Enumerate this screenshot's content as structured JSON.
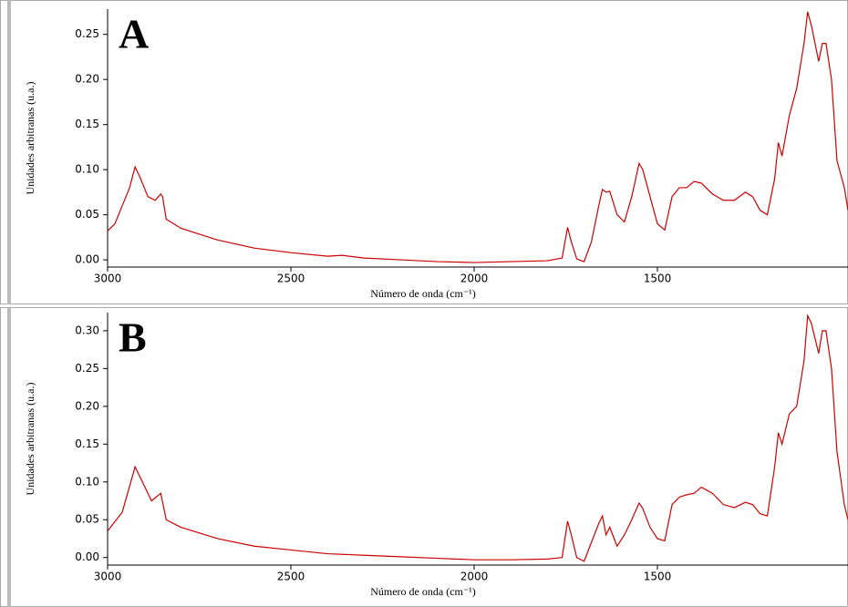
{
  "chart_data": [
    {
      "type": "line",
      "panel_label": "A",
      "ylabel": "Unidades arbitranas (u.a.)",
      "xlabel": "Número de onda (cm⁻¹)",
      "color": "#cc0000",
      "xlim": [
        3000,
        980
      ],
      "xticks": [
        3000,
        2500,
        2000,
        1500
      ],
      "ylim": [
        -0.008,
        0.278
      ],
      "yticks": [
        {
          "value": 0,
          "label": "0.00"
        },
        0.05,
        {
          "value": 0.1,
          "label": "0.10"
        },
        0.15,
        {
          "value": 0.2,
          "label": "0.20"
        },
        0.25
      ],
      "grid": false,
      "x": [
        3000,
        2980,
        2960,
        2940,
        2925,
        2910,
        2890,
        2870,
        2855,
        2850,
        2840,
        2800,
        2700,
        2600,
        2500,
        2400,
        2360,
        2300,
        2200,
        2100,
        2000,
        1900,
        1800,
        1760,
        1745,
        1735,
        1720,
        1700,
        1680,
        1660,
        1650,
        1640,
        1630,
        1610,
        1590,
        1570,
        1550,
        1540,
        1520,
        1500,
        1480,
        1460,
        1440,
        1420,
        1400,
        1380,
        1350,
        1320,
        1290,
        1260,
        1240,
        1220,
        1200,
        1180,
        1170,
        1160,
        1140,
        1120,
        1100,
        1090,
        1080,
        1060,
        1050,
        1040,
        1025,
        1010,
        990,
        980
      ],
      "values": [
        0.032,
        0.04,
        0.06,
        0.08,
        0.103,
        0.09,
        0.07,
        0.066,
        0.073,
        0.07,
        0.045,
        0.035,
        0.022,
        0.013,
        0.008,
        0.004,
        0.005,
        0.002,
        0.0,
        -0.002,
        -0.003,
        -0.002,
        -0.001,
        0.002,
        0.036,
        0.02,
        0.001,
        -0.002,
        0.02,
        0.06,
        0.078,
        0.075,
        0.076,
        0.05,
        0.042,
        0.07,
        0.107,
        0.1,
        0.07,
        0.04,
        0.033,
        0.07,
        0.08,
        0.08,
        0.087,
        0.085,
        0.073,
        0.066,
        0.066,
        0.075,
        0.07,
        0.055,
        0.05,
        0.09,
        0.13,
        0.115,
        0.16,
        0.19,
        0.24,
        0.275,
        0.26,
        0.22,
        0.24,
        0.24,
        0.2,
        0.11,
        0.08,
        0.055
      ]
    },
    {
      "type": "line",
      "panel_label": "B",
      "ylabel": "Unidades arbitranas (u.a.)",
      "xlabel": "Número de onda (cm⁻¹)",
      "color": "#cc0000",
      "xlim": [
        3000,
        980
      ],
      "xticks": [
        3000,
        2500,
        2000,
        1500
      ],
      "ylim": [
        -0.01,
        0.324
      ],
      "yticks": [
        {
          "value": 0,
          "label": "0.00"
        },
        0.05,
        {
          "value": 0.1,
          "label": "0.10"
        },
        0.15,
        {
          "value": 0.2,
          "label": "0.20"
        },
        0.25,
        {
          "value": 0.3,
          "label": "0.30"
        }
      ],
      "grid": false,
      "x": [
        3000,
        2960,
        2925,
        2910,
        2880,
        2855,
        2840,
        2800,
        2700,
        2600,
        2500,
        2400,
        2300,
        2200,
        2100,
        2000,
        1900,
        1800,
        1760,
        1745,
        1735,
        1720,
        1700,
        1680,
        1660,
        1650,
        1640,
        1630,
        1610,
        1590,
        1570,
        1550,
        1540,
        1520,
        1500,
        1480,
        1460,
        1440,
        1420,
        1400,
        1380,
        1350,
        1320,
        1290,
        1260,
        1240,
        1220,
        1200,
        1180,
        1170,
        1160,
        1140,
        1120,
        1100,
        1090,
        1080,
        1060,
        1050,
        1040,
        1025,
        1010,
        990,
        980
      ],
      "values": [
        0.035,
        0.06,
        0.12,
        0.105,
        0.075,
        0.085,
        0.05,
        0.04,
        0.025,
        0.015,
        0.01,
        0.005,
        0.003,
        0.001,
        -0.001,
        -0.003,
        -0.003,
        -0.002,
        0.0,
        0.048,
        0.03,
        0.0,
        -0.005,
        0.02,
        0.045,
        0.055,
        0.03,
        0.04,
        0.015,
        0.03,
        0.05,
        0.072,
        0.065,
        0.04,
        0.025,
        0.022,
        0.07,
        0.08,
        0.083,
        0.085,
        0.093,
        0.085,
        0.07,
        0.066,
        0.073,
        0.07,
        0.058,
        0.055,
        0.12,
        0.165,
        0.15,
        0.19,
        0.2,
        0.26,
        0.32,
        0.31,
        0.27,
        0.3,
        0.3,
        0.25,
        0.14,
        0.07,
        0.05
      ]
    }
  ]
}
